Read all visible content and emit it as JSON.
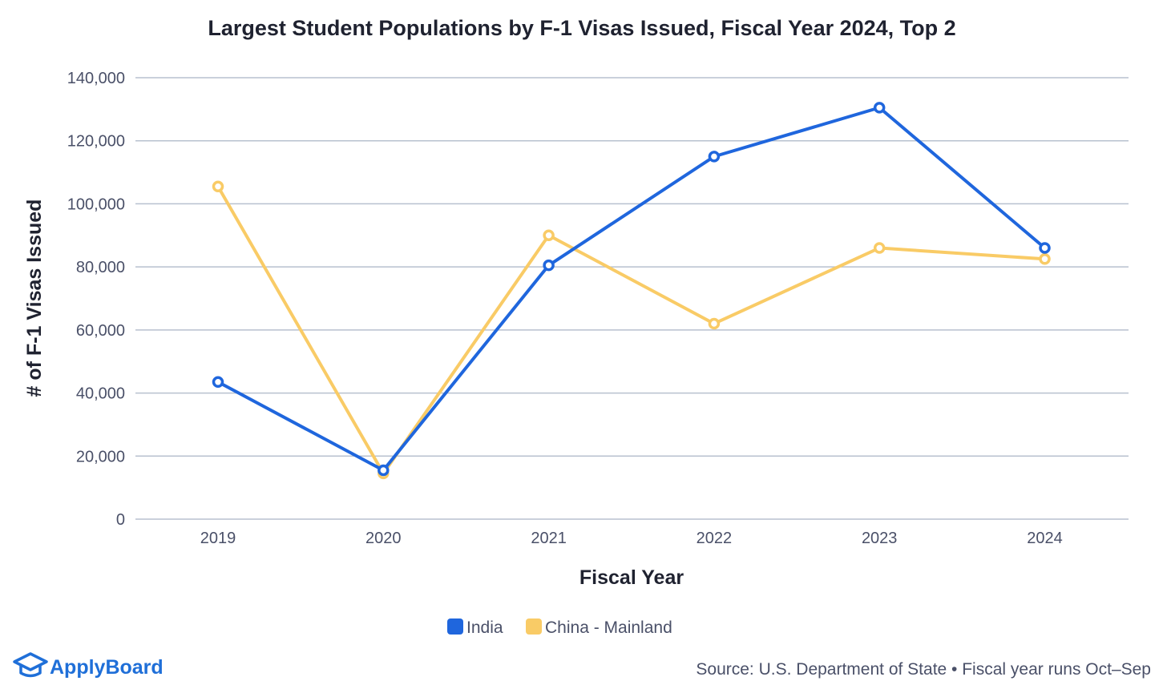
{
  "chart_data": {
    "type": "line",
    "title": "Largest Student Populations by F-1 Visas Issued, Fiscal Year 2024, Top 2",
    "xlabel": "Fiscal Year",
    "ylabel": "# of F-1 Visas Issued",
    "categories": [
      "2019",
      "2020",
      "2021",
      "2022",
      "2023",
      "2024"
    ],
    "ylim": [
      0,
      140000
    ],
    "yticks": [
      0,
      20000,
      40000,
      60000,
      80000,
      100000,
      120000,
      140000
    ],
    "ytick_labels": [
      "0",
      "20,000",
      "40,000",
      "60,000",
      "80,000",
      "100,000",
      "120,000",
      "140,000"
    ],
    "grid": true,
    "legend_position": "bottom-center",
    "series": [
      {
        "name": "India",
        "color": "#1f66dd",
        "values": [
          43500,
          15500,
          80500,
          115000,
          130500,
          86000
        ]
      },
      {
        "name": "China - Mainland",
        "color": "#f9cb66",
        "values": [
          105500,
          14500,
          90000,
          62000,
          86000,
          82500
        ]
      }
    ]
  },
  "footer": {
    "brand": "ApplyBoard",
    "brand_icon": "mortarboard-icon",
    "source": "Source: U.S. Department of State • Fiscal year runs Oct–Sep"
  }
}
